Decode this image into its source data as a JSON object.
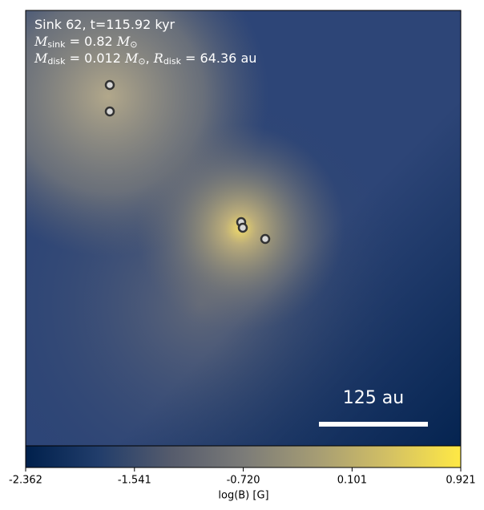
{
  "chart_data": {
    "type": "image",
    "annotations": [
      [
        {
          "text": "Sink 62, t=115.92 kyr"
        }
      ],
      [
        {
          "text": "M",
          "italic": true
        },
        {
          "text": "sink",
          "sub": true
        },
        {
          "text": " = 0.82 "
        },
        {
          "text": "M",
          "italic": true
        },
        {
          "text": "⊙",
          "sub": true
        }
      ],
      [
        {
          "text": "M",
          "italic": true
        },
        {
          "text": "disk",
          "sub": true
        },
        {
          "text": " = 0.012 "
        },
        {
          "text": "M",
          "italic": true
        },
        {
          "text": "⊙",
          "sub": true
        },
        {
          "text": ", "
        },
        {
          "text": "R",
          "italic": true
        },
        {
          "text": "disk",
          "sub": true
        },
        {
          "text": " = 64.36 au"
        }
      ]
    ],
    "scalebar_label": "125 au",
    "colorbar": {
      "label": "log(B) [G]",
      "lim": [
        -2.362,
        0.921
      ],
      "ticks": [
        -2.362,
        -1.541,
        {
          "value": -0.72,
          "label": "-0.720"
        },
        0.101,
        0.921
      ],
      "colors": [
        "#00204c",
        "#213d6b",
        "#555b6c",
        "#7b7b78",
        "#a59c74",
        "#d3c064",
        "#ffe945"
      ]
    }
  }
}
